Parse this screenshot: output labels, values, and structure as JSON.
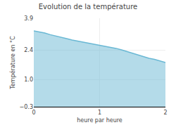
{
  "chart_data": {
    "type": "area",
    "title": "Evolution de la température",
    "xlabel": "heure par heure",
    "ylabel": "Température en °C",
    "x": [
      0.0,
      0.083,
      0.167,
      0.25,
      0.333,
      0.417,
      0.5,
      0.583,
      0.667,
      0.75,
      0.833,
      0.917,
      1.0,
      1.083,
      1.167,
      1.25,
      1.333,
      1.417,
      1.5,
      1.583,
      1.667,
      1.75,
      1.833,
      1.917,
      2.0
    ],
    "values": [
      3.3,
      3.25,
      3.2,
      3.12,
      3.05,
      3.0,
      2.93,
      2.87,
      2.82,
      2.77,
      2.72,
      2.68,
      2.63,
      2.58,
      2.53,
      2.47,
      2.4,
      2.32,
      2.25,
      2.18,
      2.1,
      2.0,
      1.95,
      1.87,
      1.8
    ],
    "color": "#6ab8d4",
    "xlim": [
      0,
      2
    ],
    "xticks": [
      0,
      1,
      2
    ],
    "ylim": [
      -0.3,
      3.9
    ],
    "yticks": [
      {
        "value": -0.3,
        "label": "−0.3"
      },
      {
        "value": 1.0,
        "label": "1.0"
      },
      2.4,
      3.9
    ],
    "grid": true
  }
}
